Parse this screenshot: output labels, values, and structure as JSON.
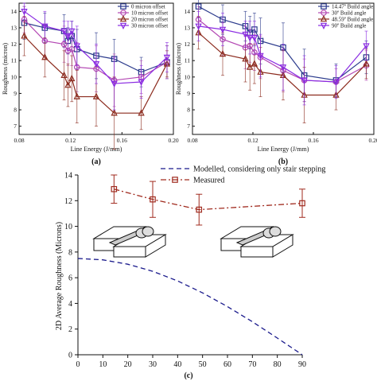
{
  "chart_data": [
    {
      "type": "line",
      "panel_label": "(a)",
      "xlabel": "Line Energy (J/mm)",
      "ylabel": "Roughness (micron)",
      "xlim": [
        0.08,
        0.2
      ],
      "ylim": [
        6.5,
        14.5
      ],
      "xticks": [
        "0.08",
        "0.12",
        "0.16",
        "0.20"
      ],
      "yticks": [
        "7",
        "8",
        "9",
        "10",
        "11",
        "12",
        "13",
        "14"
      ],
      "grid": false,
      "legend_position": "top-right",
      "x": [
        0.084,
        0.1,
        0.115,
        0.118,
        0.121,
        0.125,
        0.14,
        0.154,
        0.175,
        0.195
      ],
      "series": [
        {
          "name": "0 micron offset",
          "color": "#2b3a8c",
          "marker": "square",
          "values": [
            13.3,
            13.0,
            12.8,
            12.2,
            12.5,
            11.7,
            11.3,
            11.1,
            10.3,
            10.9
          ],
          "errors": [
            1.0,
            0.9,
            1.0,
            0.8,
            0.9,
            1.2,
            1.4,
            1.2,
            0.9,
            1.0
          ]
        },
        {
          "name": "10 micron offset",
          "color": "#b347b3",
          "marker": "circle",
          "values": [
            13.5,
            12.2,
            12.0,
            11.6,
            11.7,
            10.6,
            10.5,
            9.8,
            10.0,
            10.9
          ],
          "errors": [
            0.8,
            1.0,
            1.1,
            0.9,
            1.0,
            1.5,
            1.4,
            1.6,
            1.0,
            1.0
          ]
        },
        {
          "name": "20 micron offset",
          "color": "#8c2b1e",
          "marker": "triangle",
          "values": [
            12.5,
            11.2,
            10.1,
            9.5,
            9.9,
            8.8,
            8.8,
            7.8,
            7.8,
            10.8
          ],
          "errors": [
            1.2,
            1.2,
            1.5,
            1.3,
            1.4,
            1.6,
            1.8,
            2.2,
            1.0,
            0.8
          ]
        },
        {
          "name": "30 micron offset",
          "color": "#8a2be2",
          "marker": "triangle-down",
          "values": [
            14.0,
            13.1,
            12.8,
            12.5,
            12.8,
            11.9,
            10.8,
            9.6,
            9.7,
            11.2
          ],
          "errors": [
            0.5,
            0.9,
            0.6,
            0.9,
            0.6,
            1.2,
            1.2,
            1.6,
            1.0,
            0.9
          ]
        }
      ]
    },
    {
      "type": "line",
      "panel_label": "(b)",
      "xlabel": "Line Energy (J/mm)",
      "ylabel": "Roughness (micron)",
      "xlim": [
        0.08,
        0.2
      ],
      "ylim": [
        6.5,
        14.5
      ],
      "xticks": [
        "0.08",
        "0.12",
        "0.16",
        "0.20"
      ],
      "yticks": [
        "7",
        "8",
        "9",
        "10",
        "11",
        "12",
        "13",
        "14"
      ],
      "grid": false,
      "legend_position": "top-right",
      "x": [
        0.084,
        0.1,
        0.115,
        0.118,
        0.121,
        0.125,
        0.14,
        0.154,
        0.175,
        0.195
      ],
      "series": [
        {
          "name": "14.47º Build angle",
          "color": "#2b3a8c",
          "marker": "square",
          "values": [
            14.3,
            13.5,
            13.1,
            12.7,
            12.9,
            12.2,
            11.8,
            10.1,
            9.8,
            11.2
          ],
          "errors": [
            0.7,
            0.9,
            0.9,
            1.0,
            1.0,
            1.4,
            1.5,
            1.6,
            1.0,
            1.0
          ]
        },
        {
          "name": "30º Build angle",
          "color": "#b347b3",
          "marker": "circle",
          "values": [
            13.5,
            12.3,
            11.8,
            11.9,
            11.5,
            11.2,
            10.4,
            9.8,
            9.7,
            10.7
          ],
          "errors": [
            0.8,
            1.0,
            1.3,
            1.0,
            1.1,
            1.3,
            1.3,
            1.3,
            0.8,
            0.9
          ]
        },
        {
          "name": "48.59º Build angle",
          "color": "#8c2b1e",
          "marker": "triangle",
          "values": [
            12.7,
            11.4,
            11.1,
            10.6,
            10.8,
            10.3,
            10.1,
            8.9,
            8.9,
            10.8
          ],
          "errors": [
            1.0,
            1.3,
            1.4,
            1.4,
            1.2,
            1.5,
            1.5,
            1.7,
            0.9,
            0.9
          ]
        },
        {
          "name": "90º Build angle",
          "color": "#8a2be2",
          "marker": "triangle-down",
          "values": [
            13.1,
            12.9,
            12.6,
            12.4,
            12.4,
            11.3,
            10.6,
            9.8,
            9.7,
            11.9
          ],
          "errors": [
            0.9,
            1.0,
            0.8,
            1.0,
            1.0,
            1.3,
            1.4,
            1.5,
            1.0,
            0.9
          ]
        }
      ]
    },
    {
      "type": "line",
      "panel_label": "(c)",
      "xlabel": "",
      "ylabel": "2D Average Roughness (Microns)",
      "xlim": [
        0,
        90
      ],
      "ylim": [
        0,
        14
      ],
      "xticks": [
        "0",
        "10",
        "20",
        "30",
        "40",
        "50",
        "60",
        "70",
        "80",
        "90"
      ],
      "yticks": [
        "0",
        "2",
        "4",
        "6",
        "8",
        "10",
        "12",
        "14"
      ],
      "grid": false,
      "legend_position": "top",
      "series": [
        {
          "name": "Modelled, considering only stair stepping",
          "color": "#1a1a8c",
          "style": "dashed",
          "x": [
            0,
            10,
            20,
            30,
            40,
            50,
            60,
            70,
            80,
            90
          ],
          "values": [
            7.5,
            7.39,
            7.05,
            6.5,
            5.75,
            4.82,
            3.75,
            2.57,
            1.3,
            0.0
          ]
        },
        {
          "name": "Measured",
          "color": "#a02a1e",
          "style": "dashdot",
          "marker": "square",
          "x": [
            14.47,
            30,
            48.59,
            90
          ],
          "values": [
            12.9,
            12.1,
            11.3,
            11.8
          ],
          "errors": [
            1.1,
            1.4,
            1.2,
            1.1
          ]
        }
      ]
    }
  ]
}
